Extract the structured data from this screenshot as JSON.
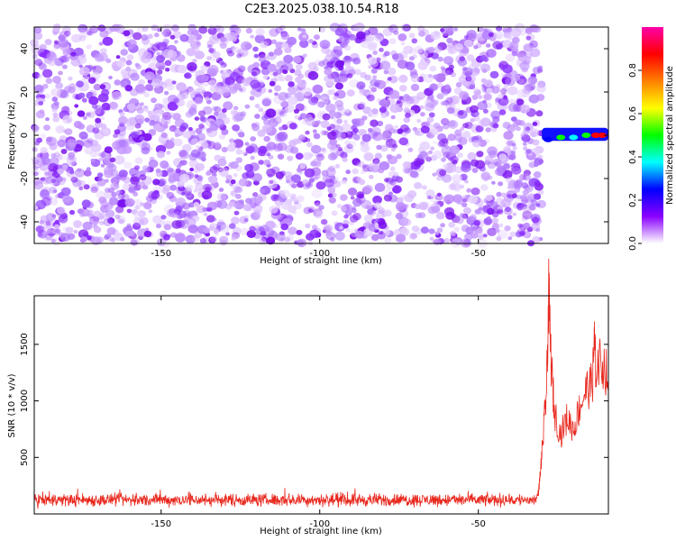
{
  "title": "C2E3.2025.038.10.54.R18",
  "chart_data": [
    {
      "type": "heatmap",
      "xlabel": "Height of straight line (km)",
      "ylabel": "Frequency (Hz)",
      "xlim": [
        -190,
        -9
      ],
      "ylim": [
        -50,
        50
      ],
      "xticks": [
        -150,
        -100,
        -50
      ],
      "yticks": [
        -40,
        -20,
        0,
        20,
        40
      ],
      "noise_region_x": [
        -190,
        -30
      ],
      "signal": {
        "frequency_hz": 0,
        "x_range": [
          -30,
          -9
        ],
        "peak_points": [
          {
            "x": -28,
            "y": -2,
            "amp": 0.3
          },
          {
            "x": -24,
            "y": -1,
            "amp": 0.55
          },
          {
            "x": -20,
            "y": -1,
            "amp": 0.35
          },
          {
            "x": -16,
            "y": 0,
            "amp": 0.55
          },
          {
            "x": -13,
            "y": 0,
            "amp": 0.85
          },
          {
            "x": -11,
            "y": 0,
            "amp": 0.9
          }
        ]
      },
      "colorbar": {
        "label": "Normalized spectral amplitude",
        "ticks": [
          0.0,
          0.2,
          0.4,
          0.6,
          0.8
        ],
        "range": [
          0,
          1
        ],
        "colors": [
          "#ffffff",
          "#8a00ff",
          "#0000ff",
          "#00ffff",
          "#00ff00",
          "#ffff00",
          "#ff8000",
          "#ff0000",
          "#ff00aa"
        ]
      },
      "grid": false
    },
    {
      "type": "line",
      "xlabel": "Height of straight line (km)",
      "ylabel": "SNR (10 * v/v)",
      "xlim": [
        -190,
        -9
      ],
      "ylim": [
        0,
        1930
      ],
      "xticks": [
        -150,
        -100,
        -50
      ],
      "yticks": [
        500,
        1000,
        1500
      ],
      "series": [
        {
          "color": "#e8281e",
          "baseline": {
            "x_range": [
              -190,
              -32
            ],
            "mean": 100,
            "range": [
              40,
              250
            ]
          },
          "rise": [
            {
              "x": -32,
              "y": 110
            },
            {
              "x": -31,
              "y": 200
            },
            {
              "x": -30.5,
              "y": 350
            },
            {
              "x": -29.5,
              "y": 700
            },
            {
              "x": -28.5,
              "y": 1100
            },
            {
              "x": -27.8,
              "y": 1930
            },
            {
              "x": -27,
              "y": 1300
            },
            {
              "x": -26,
              "y": 900
            },
            {
              "x": -24,
              "y": 700
            },
            {
              "x": -22,
              "y": 850
            },
            {
              "x": -20,
              "y": 750
            },
            {
              "x": -18,
              "y": 950
            },
            {
              "x": -16,
              "y": 1100
            },
            {
              "x": -14,
              "y": 1150
            },
            {
              "x": -13.5,
              "y": 1550
            },
            {
              "x": -13,
              "y": 1300
            },
            {
              "x": -11,
              "y": 1350
            },
            {
              "x": -9,
              "y": 1200
            }
          ]
        }
      ],
      "grid": false
    }
  ]
}
